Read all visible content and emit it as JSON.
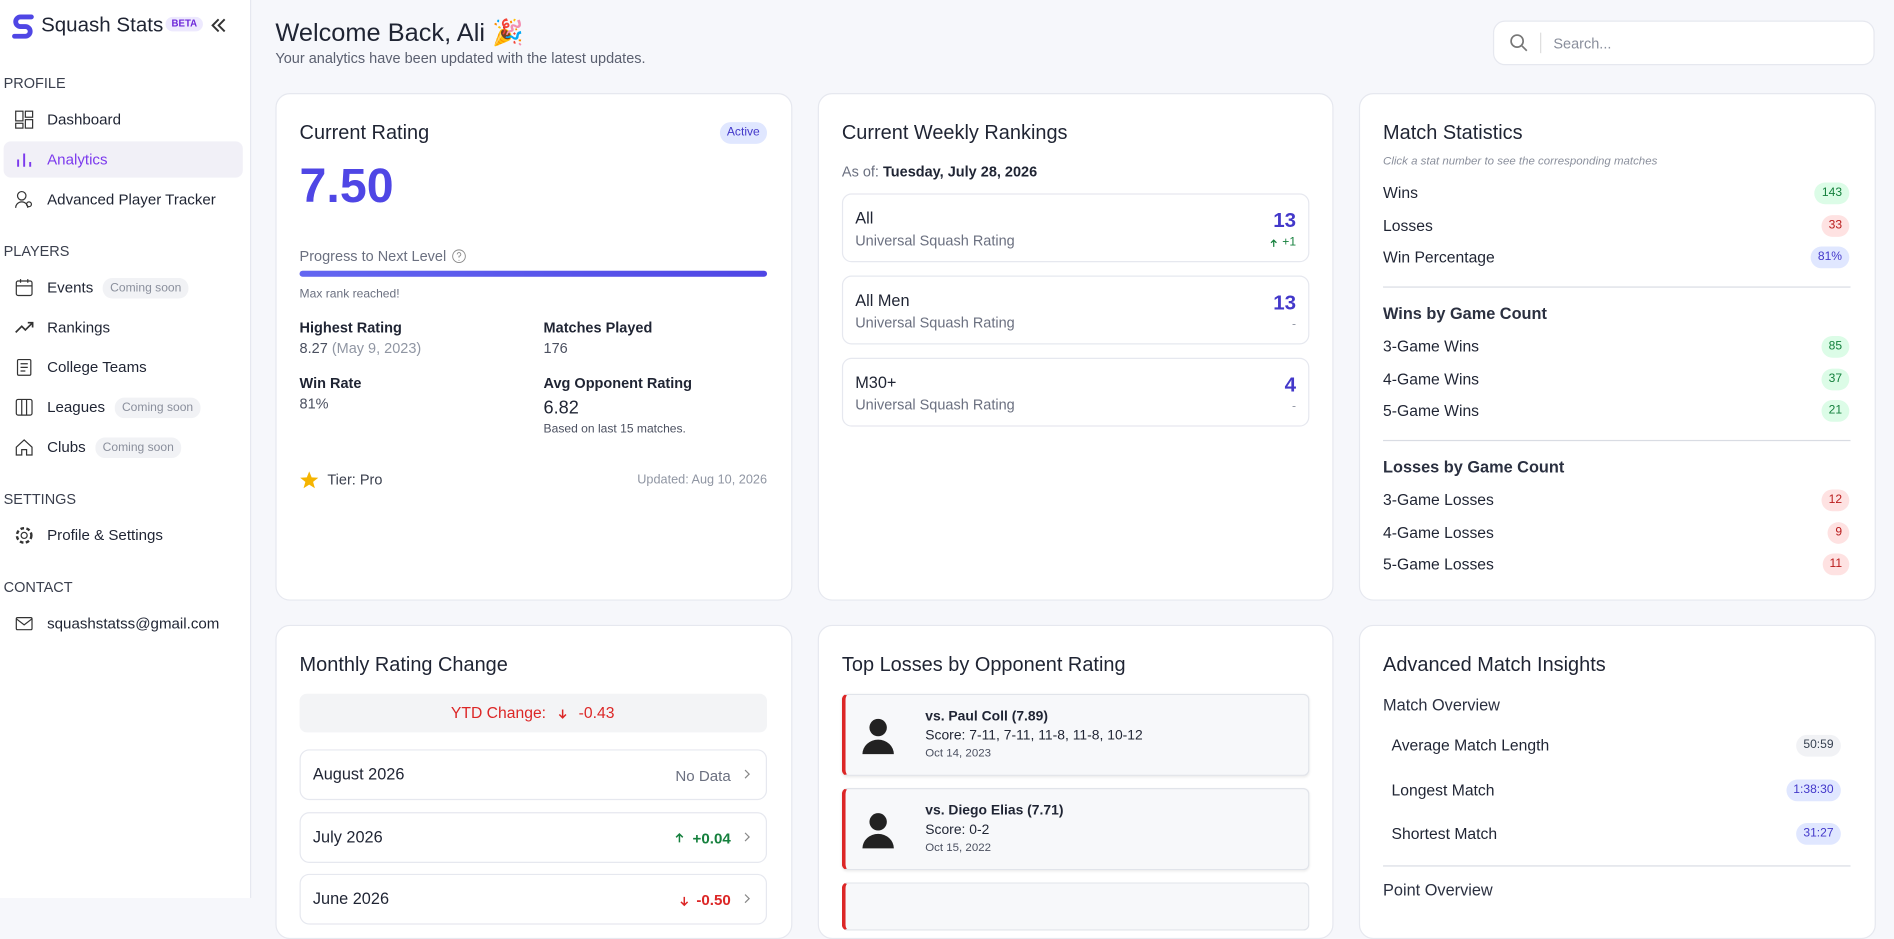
{
  "sidebar": {
    "brand": "Squash Stats",
    "badge": "BETA",
    "sections": [
      {
        "title": "PROFILE",
        "items": [
          {
            "label": "Dashboard"
          },
          {
            "label": "Analytics",
            "active": true
          },
          {
            "label": "Advanced Player Tracker"
          }
        ]
      },
      {
        "title": "PLAYERS",
        "items": [
          {
            "label": "Events",
            "badge": "Coming soon"
          },
          {
            "label": "Rankings"
          },
          {
            "label": "College Teams"
          },
          {
            "label": "Leagues",
            "badge": "Coming soon"
          },
          {
            "label": "Clubs",
            "badge": "Coming soon"
          }
        ]
      },
      {
        "title": "SETTINGS",
        "items": [
          {
            "label": "Profile & Settings"
          }
        ]
      },
      {
        "title": "CONTACT",
        "items": [
          {
            "label": "squashstatss@gmail.com"
          }
        ]
      }
    ]
  },
  "header": {
    "title": "Welcome Back, Ali 🎉",
    "subtitle": "Your analytics have been updated with the latest updates.",
    "search_placeholder": "Search..."
  },
  "rating_card": {
    "title": "Current Rating",
    "status": "Active",
    "rating": "7.50",
    "progress_label": "Progress to Next Level",
    "progress": 100,
    "progress_note": "Max rank reached!",
    "stats": [
      {
        "label": "Highest Rating",
        "value": "8.27",
        "note": "(May 9, 2023)"
      },
      {
        "label": "Matches Played",
        "value": "176"
      },
      {
        "label": "Win Rate",
        "value": "81%"
      },
      {
        "label": "Avg Opponent Rating",
        "value": "6.82",
        "note": "Based on last 15 matches."
      }
    ],
    "tier": "Tier: Pro",
    "updated": "Updated: Aug 10, 2026"
  },
  "rankings_card": {
    "title": "Current Weekly Rankings",
    "as_of_label": "As of:",
    "as_of": "Tuesday, July 28, 2026",
    "items": [
      {
        "name": "All",
        "system": "Universal Squash Rating",
        "rank": "13",
        "change": "+1"
      },
      {
        "name": "All Men",
        "system": "Universal Squash Rating",
        "rank": "13",
        "change": "-"
      },
      {
        "name": "M30+",
        "system": "Universal Squash Rating",
        "rank": "4",
        "change": "-"
      }
    ]
  },
  "stats_card": {
    "title": "Match Statistics",
    "hint": "Click a stat number to see the corresponding matches",
    "summary": [
      {
        "label": "Wins",
        "value": "143",
        "tone": "green"
      },
      {
        "label": "Losses",
        "value": "33",
        "tone": "red"
      },
      {
        "label": "Win Percentage",
        "value": "81%",
        "tone": "blue"
      }
    ],
    "groups": [
      {
        "title": "Wins by Game Count",
        "items": [
          {
            "label": "3-Game Wins",
            "value": "85",
            "tone": "green"
          },
          {
            "label": "4-Game Wins",
            "value": "37",
            "tone": "green"
          },
          {
            "label": "5-Game Wins",
            "value": "21",
            "tone": "green"
          }
        ]
      },
      {
        "title": "Losses by Game Count",
        "items": [
          {
            "label": "3-Game Losses",
            "value": "12",
            "tone": "red"
          },
          {
            "label": "4-Game Losses",
            "value": "9",
            "tone": "red"
          },
          {
            "label": "5-Game Losses",
            "value": "11",
            "tone": "red"
          }
        ]
      }
    ]
  },
  "monthly_card": {
    "title": "Monthly Rating Change",
    "ytd_label": "YTD Change:",
    "ytd_value": "-0.43",
    "months": [
      {
        "month": "August 2026",
        "change": "No Data"
      },
      {
        "month": "July 2026",
        "change": "+0.04"
      },
      {
        "month": "June 2026",
        "change": "-0.50"
      }
    ]
  },
  "losses_card": {
    "title": "Top Losses by Opponent Rating",
    "items": [
      {
        "opponent": "vs. Paul Coll (7.89)",
        "score": "Score: 7-11, 7-11, 11-8, 11-8, 10-12",
        "date": "Oct 14, 2023"
      },
      {
        "opponent": "vs. Diego Elias (7.71)",
        "score": "Score: 0-2",
        "date": "Oct 15, 2022"
      }
    ]
  },
  "insights_card": {
    "title": "Advanced Match Insights",
    "section": "Match Overview",
    "items": [
      {
        "label": "Average Match Length",
        "value": "50:59",
        "tone": "grey"
      },
      {
        "label": "Longest Match",
        "value": "1:38:30",
        "tone": "blue"
      },
      {
        "label": "Shortest Match",
        "value": "31:27",
        "tone": "blue"
      }
    ],
    "next_section": "Point Overview"
  }
}
